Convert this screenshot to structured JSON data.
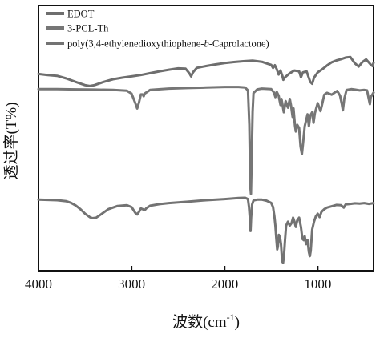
{
  "chart_data": {
    "type": "line",
    "xlabel": "波数(cm",
    "xlabel_sup": "-1",
    "xlabel_close": ")",
    "ylabel": "透过率(T%)",
    "xlim": [
      4000,
      400
    ],
    "xticks": [
      4000,
      3000,
      2000,
      1000
    ],
    "ylim": [
      0,
      1
    ],
    "yticks_shown": false,
    "legend_position": "top-left",
    "series": [
      {
        "name": "EDOT",
        "color": "#6e6e6e",
        "points": [
          [
            4000,
            0.742
          ],
          [
            3900,
            0.738
          ],
          [
            3800,
            0.735
          ],
          [
            3700,
            0.725
          ],
          [
            3600,
            0.712
          ],
          [
            3500,
            0.7
          ],
          [
            3450,
            0.697
          ],
          [
            3400,
            0.7
          ],
          [
            3300,
            0.712
          ],
          [
            3200,
            0.722
          ],
          [
            3100,
            0.728
          ],
          [
            3000,
            0.733
          ],
          [
            2900,
            0.738
          ],
          [
            2800,
            0.745
          ],
          [
            2700,
            0.752
          ],
          [
            2600,
            0.758
          ],
          [
            2500,
            0.763
          ],
          [
            2420,
            0.762
          ],
          [
            2380,
            0.745
          ],
          [
            2360,
            0.733
          ],
          [
            2340,
            0.748
          ],
          [
            2300,
            0.765
          ],
          [
            2200,
            0.772
          ],
          [
            2100,
            0.778
          ],
          [
            2000,
            0.783
          ],
          [
            1900,
            0.787
          ],
          [
            1800,
            0.79
          ],
          [
            1700,
            0.792
          ],
          [
            1600,
            0.788
          ],
          [
            1550,
            0.782
          ],
          [
            1500,
            0.776
          ],
          [
            1480,
            0.765
          ],
          [
            1460,
            0.775
          ],
          [
            1440,
            0.76
          ],
          [
            1420,
            0.74
          ],
          [
            1400,
            0.755
          ],
          [
            1380,
            0.735
          ],
          [
            1370,
            0.72
          ],
          [
            1350,
            0.73
          ],
          [
            1300,
            0.745
          ],
          [
            1250,
            0.755
          ],
          [
            1200,
            0.752
          ],
          [
            1180,
            0.73
          ],
          [
            1160,
            0.748
          ],
          [
            1120,
            0.752
          ],
          [
            1080,
            0.712
          ],
          [
            1060,
            0.705
          ],
          [
            1040,
            0.728
          ],
          [
            1000,
            0.748
          ],
          [
            950,
            0.76
          ],
          [
            900,
            0.774
          ],
          [
            850,
            0.786
          ],
          [
            800,
            0.793
          ],
          [
            750,
            0.798
          ],
          [
            700,
            0.804
          ],
          [
            650,
            0.806
          ],
          [
            600,
            0.782
          ],
          [
            560,
            0.77
          ],
          [
            520,
            0.787
          ],
          [
            480,
            0.797
          ],
          [
            430,
            0.777
          ],
          [
            410,
            0.772
          ],
          [
            400,
            0.785
          ]
        ]
      },
      {
        "name": "3-PCL-Th",
        "color": "#767676",
        "points": [
          [
            4000,
            0.685
          ],
          [
            3800,
            0.685
          ],
          [
            3600,
            0.684
          ],
          [
            3400,
            0.683
          ],
          [
            3200,
            0.682
          ],
          [
            3050,
            0.679
          ],
          [
            3000,
            0.668
          ],
          [
            2960,
            0.632
          ],
          [
            2940,
            0.612
          ],
          [
            2920,
            0.635
          ],
          [
            2900,
            0.665
          ],
          [
            2880,
            0.665
          ],
          [
            2870,
            0.658
          ],
          [
            2860,
            0.668
          ],
          [
            2800,
            0.682
          ],
          [
            2600,
            0.687
          ],
          [
            2400,
            0.689
          ],
          [
            2200,
            0.691
          ],
          [
            2000,
            0.693
          ],
          [
            1850,
            0.693
          ],
          [
            1780,
            0.691
          ],
          [
            1750,
            0.68
          ],
          [
            1735,
            0.55
          ],
          [
            1725,
            0.32
          ],
          [
            1718,
            0.29
          ],
          [
            1710,
            0.42
          ],
          [
            1700,
            0.6
          ],
          [
            1690,
            0.67
          ],
          [
            1650,
            0.684
          ],
          [
            1600,
            0.687
          ],
          [
            1500,
            0.685
          ],
          [
            1470,
            0.672
          ],
          [
            1455,
            0.655
          ],
          [
            1440,
            0.675
          ],
          [
            1420,
            0.66
          ],
          [
            1400,
            0.625
          ],
          [
            1390,
            0.648
          ],
          [
            1365,
            0.598
          ],
          [
            1345,
            0.64
          ],
          [
            1320,
            0.615
          ],
          [
            1300,
            0.648
          ],
          [
            1285,
            0.62
          ],
          [
            1270,
            0.58
          ],
          [
            1260,
            0.612
          ],
          [
            1245,
            0.548
          ],
          [
            1235,
            0.525
          ],
          [
            1220,
            0.55
          ],
          [
            1200,
            0.538
          ],
          [
            1185,
            0.468
          ],
          [
            1170,
            0.44
          ],
          [
            1160,
            0.475
          ],
          [
            1140,
            0.545
          ],
          [
            1110,
            0.59
          ],
          [
            1095,
            0.545
          ],
          [
            1080,
            0.585
          ],
          [
            1060,
            0.598
          ],
          [
            1045,
            0.558
          ],
          [
            1030,
            0.595
          ],
          [
            1000,
            0.632
          ],
          [
            970,
            0.602
          ],
          [
            955,
            0.625
          ],
          [
            930,
            0.664
          ],
          [
            900,
            0.671
          ],
          [
            850,
            0.664
          ],
          [
            810,
            0.674
          ],
          [
            790,
            0.678
          ],
          [
            760,
            0.66
          ],
          [
            740,
            0.627
          ],
          [
            730,
            0.605
          ],
          [
            715,
            0.648
          ],
          [
            690,
            0.682
          ],
          [
            640,
            0.685
          ],
          [
            600,
            0.683
          ],
          [
            550,
            0.68
          ],
          [
            500,
            0.682
          ],
          [
            470,
            0.68
          ],
          [
            450,
            0.645
          ],
          [
            440,
            0.628
          ],
          [
            430,
            0.655
          ],
          [
            400,
            0.672
          ]
        ]
      },
      {
        "name": "poly(3,4-ethylenedioxythiophene-b-Caprolactone)",
        "name_parts": [
          "poly(3,4-ethylenedioxythiophene-",
          "b",
          "-Caprolactone)"
        ],
        "color": "#737373",
        "points": [
          [
            4000,
            0.268
          ],
          [
            3900,
            0.267
          ],
          [
            3800,
            0.266
          ],
          [
            3700,
            0.262
          ],
          [
            3650,
            0.256
          ],
          [
            3600,
            0.246
          ],
          [
            3550,
            0.232
          ],
          [
            3500,
            0.215
          ],
          [
            3450,
            0.202
          ],
          [
            3420,
            0.198
          ],
          [
            3380,
            0.2
          ],
          [
            3330,
            0.212
          ],
          [
            3250,
            0.232
          ],
          [
            3150,
            0.244
          ],
          [
            3050,
            0.247
          ],
          [
            3000,
            0.24
          ],
          [
            2960,
            0.218
          ],
          [
            2940,
            0.212
          ],
          [
            2920,
            0.222
          ],
          [
            2900,
            0.235
          ],
          [
            2880,
            0.232
          ],
          [
            2860,
            0.228
          ],
          [
            2840,
            0.236
          ],
          [
            2800,
            0.245
          ],
          [
            2700,
            0.251
          ],
          [
            2600,
            0.255
          ],
          [
            2400,
            0.26
          ],
          [
            2200,
            0.266
          ],
          [
            2000,
            0.27
          ],
          [
            1850,
            0.274
          ],
          [
            1780,
            0.275
          ],
          [
            1750,
            0.27
          ],
          [
            1738,
            0.24
          ],
          [
            1730,
            0.2
          ],
          [
            1722,
            0.15
          ],
          [
            1716,
            0.2
          ],
          [
            1705,
            0.25
          ],
          [
            1690,
            0.265
          ],
          [
            1650,
            0.268
          ],
          [
            1600,
            0.268
          ],
          [
            1550,
            0.264
          ],
          [
            1500,
            0.256
          ],
          [
            1480,
            0.24
          ],
          [
            1465,
            0.205
          ],
          [
            1455,
            0.17
          ],
          [
            1445,
            0.12
          ],
          [
            1435,
            0.08
          ],
          [
            1428,
            0.09
          ],
          [
            1418,
            0.135
          ],
          [
            1405,
            0.125
          ],
          [
            1395,
            0.1
          ],
          [
            1382,
            0.035
          ],
          [
            1372,
            0.03
          ],
          [
            1362,
            0.06
          ],
          [
            1352,
            0.115
          ],
          [
            1340,
            0.17
          ],
          [
            1320,
            0.185
          ],
          [
            1300,
            0.17
          ],
          [
            1280,
            0.18
          ],
          [
            1265,
            0.2
          ],
          [
            1250,
            0.185
          ],
          [
            1235,
            0.165
          ],
          [
            1220,
            0.19
          ],
          [
            1200,
            0.2
          ],
          [
            1180,
            0.165
          ],
          [
            1165,
            0.12
          ],
          [
            1150,
            0.115
          ],
          [
            1140,
            0.13
          ],
          [
            1125,
            0.1
          ],
          [
            1110,
            0.115
          ],
          [
            1095,
            0.07
          ],
          [
            1085,
            0.055
          ],
          [
            1075,
            0.075
          ],
          [
            1060,
            0.155
          ],
          [
            1040,
            0.185
          ],
          [
            1020,
            0.205
          ],
          [
            1000,
            0.215
          ],
          [
            980,
            0.202
          ],
          [
            960,
            0.222
          ],
          [
            930,
            0.232
          ],
          [
            900,
            0.238
          ],
          [
            850,
            0.243
          ],
          [
            800,
            0.248
          ],
          [
            750,
            0.247
          ],
          [
            720,
            0.238
          ],
          [
            700,
            0.25
          ],
          [
            650,
            0.252
          ],
          [
            600,
            0.254
          ],
          [
            550,
            0.253
          ],
          [
            500,
            0.255
          ],
          [
            450,
            0.252
          ],
          [
            400,
            0.255
          ]
        ]
      }
    ]
  }
}
